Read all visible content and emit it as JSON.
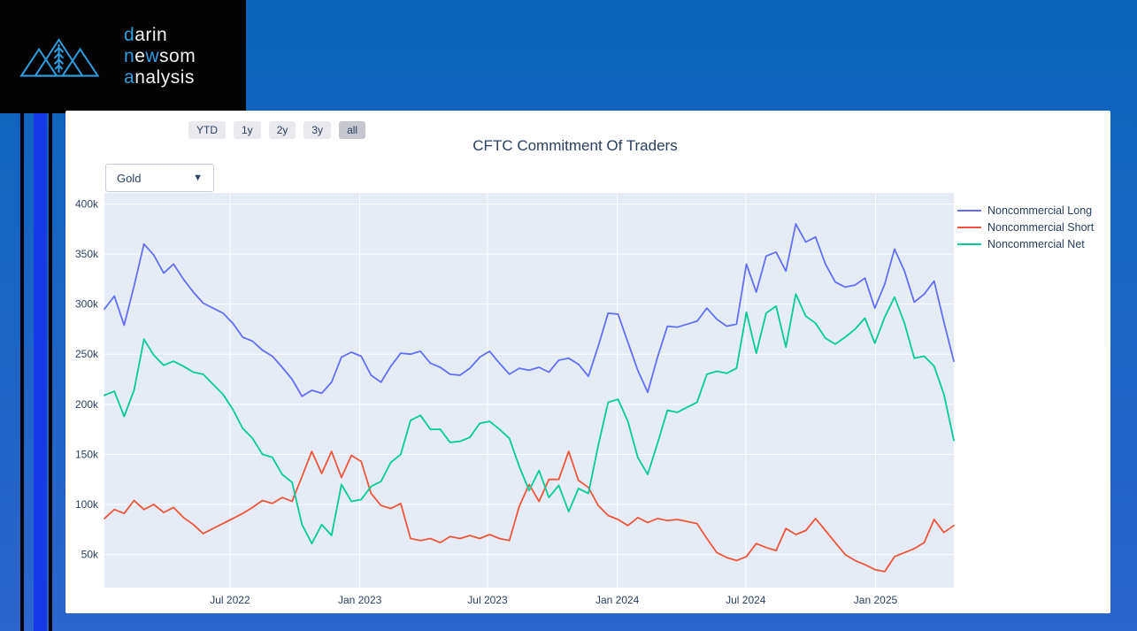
{
  "page": {
    "background_top": "#0b63bb",
    "background_bottom": "#2b65cd",
    "accent_stripe_color": "#1638e6"
  },
  "logo": {
    "accent_color": "#2f9dde",
    "lines": [
      {
        "parts": [
          {
            "t": "d",
            "accent": true
          },
          {
            "t": "arin",
            "accent": false
          }
        ]
      },
      {
        "parts": [
          {
            "t": "n",
            "accent": true
          },
          {
            "t": "e",
            "accent": false
          },
          {
            "t": "w",
            "accent": true
          },
          {
            "t": "som",
            "accent": false
          }
        ]
      },
      {
        "parts": [
          {
            "t": "a",
            "accent": true
          },
          {
            "t": "nalysis",
            "accent": false
          }
        ]
      }
    ]
  },
  "toolbar": {
    "range_buttons": [
      {
        "label": "YTD",
        "active": false
      },
      {
        "label": "1y",
        "active": false
      },
      {
        "label": "2y",
        "active": false
      },
      {
        "label": "3y",
        "active": false
      },
      {
        "label": "all",
        "active": true
      }
    ]
  },
  "dropdown": {
    "value": "Gold",
    "arrow_icon": "▼"
  },
  "chart_data": {
    "type": "line",
    "title": "CFTC Commitment Of Traders",
    "unit": "contracts, thousands",
    "plot_bg": "#e5ecf6",
    "grid_color": "#ffffff",
    "text_color": "#2a3f5f",
    "grid": true,
    "legend_position": "top-right-outside",
    "ylim": [
      17,
      411
    ],
    "x_range": [
      "2022-01-04",
      "2025-04-22"
    ],
    "yticks": [
      {
        "label": "400k",
        "value": 400
      },
      {
        "label": "350k",
        "value": 350
      },
      {
        "label": "300k",
        "value": 300
      },
      {
        "label": "250k",
        "value": 250
      },
      {
        "label": "200k",
        "value": 200
      },
      {
        "label": "150k",
        "value": 150
      },
      {
        "label": "100k",
        "value": 100
      },
      {
        "label": "50k",
        "value": 50
      }
    ],
    "xticks": [
      {
        "label": "Jul 2022",
        "date": "2022-07-01"
      },
      {
        "label": "Jan 2023",
        "date": "2023-01-01"
      },
      {
        "label": "Jul 2023",
        "date": "2023-07-01"
      },
      {
        "label": "Jan 2024",
        "date": "2024-01-01"
      },
      {
        "label": "Jul 2024",
        "date": "2024-07-01"
      },
      {
        "label": "Jan 2025",
        "date": "2025-01-01"
      }
    ],
    "x_dates": [
      "2022-01-04",
      "2022-01-18",
      "2022-02-01",
      "2022-02-15",
      "2022-03-01",
      "2022-03-15",
      "2022-03-29",
      "2022-04-12",
      "2022-04-26",
      "2022-05-10",
      "2022-05-24",
      "2022-06-07",
      "2022-06-21",
      "2022-07-05",
      "2022-07-19",
      "2022-08-02",
      "2022-08-16",
      "2022-08-30",
      "2022-09-13",
      "2022-09-27",
      "2022-10-11",
      "2022-10-25",
      "2022-11-08",
      "2022-11-22",
      "2022-12-06",
      "2022-12-20",
      "2023-01-03",
      "2023-01-17",
      "2023-01-31",
      "2023-02-14",
      "2023-02-28",
      "2023-03-14",
      "2023-03-28",
      "2023-04-11",
      "2023-04-25",
      "2023-05-09",
      "2023-05-23",
      "2023-06-06",
      "2023-06-20",
      "2023-07-04",
      "2023-07-18",
      "2023-08-01",
      "2023-08-15",
      "2023-08-29",
      "2023-09-12",
      "2023-09-26",
      "2023-10-10",
      "2023-10-24",
      "2023-11-07",
      "2023-11-21",
      "2023-12-05",
      "2023-12-19",
      "2024-01-02",
      "2024-01-16",
      "2024-01-30",
      "2024-02-13",
      "2024-02-27",
      "2024-03-12",
      "2024-03-26",
      "2024-04-09",
      "2024-04-23",
      "2024-05-07",
      "2024-05-21",
      "2024-06-04",
      "2024-06-18",
      "2024-07-02",
      "2024-07-16",
      "2024-07-30",
      "2024-08-13",
      "2024-08-27",
      "2024-09-10",
      "2024-09-24",
      "2024-10-08",
      "2024-10-22",
      "2024-11-05",
      "2024-11-19",
      "2024-12-03",
      "2024-12-17",
      "2024-12-31",
      "2025-01-14",
      "2025-01-28",
      "2025-02-11",
      "2025-02-25",
      "2025-03-11",
      "2025-03-25",
      "2025-04-08",
      "2025-04-22"
    ],
    "series": [
      {
        "name": "Noncommercial Long",
        "color": "#636efa",
        "values": [
          295,
          308,
          279,
          318,
          360,
          349,
          331,
          340,
          325,
          312,
          301,
          296,
          291,
          281,
          267,
          263,
          254,
          248,
          237,
          225,
          208,
          214,
          211,
          222,
          247,
          252,
          248,
          229,
          222,
          238,
          251,
          250,
          253,
          241,
          237,
          230,
          229,
          236,
          247,
          253,
          241,
          230,
          236,
          234,
          237,
          232,
          244,
          246,
          240,
          228,
          258,
          291,
          290,
          262,
          234,
          212,
          247,
          278,
          277,
          280,
          283,
          296,
          285,
          278,
          280,
          340,
          312,
          348,
          352,
          333,
          380,
          362,
          367,
          340,
          322,
          317,
          319,
          326,
          296,
          320,
          355,
          333,
          302,
          310,
          323,
          282,
          243
        ]
      },
      {
        "name": "Noncommercial Short",
        "color": "#ef553b",
        "values": [
          86,
          95,
          91,
          104,
          95,
          100,
          92,
          97,
          87,
          80,
          71,
          76,
          81,
          86,
          91,
          97,
          104,
          101,
          107,
          103,
          128,
          153,
          131,
          153,
          127,
          149,
          143,
          111,
          99,
          96,
          101,
          66,
          64,
          66,
          62,
          68,
          66,
          69,
          66,
          70,
          66,
          64,
          98,
          120,
          103,
          125,
          125,
          153,
          124,
          117,
          99,
          89,
          85,
          79,
          87,
          82,
          86,
          84,
          85,
          83,
          81,
          66,
          52,
          47,
          44,
          48,
          61,
          57,
          54,
          76,
          70,
          74,
          86,
          74,
          62,
          50,
          44,
          40,
          35,
          33,
          48,
          52,
          56,
          62,
          85,
          72,
          79
        ]
      },
      {
        "name": "Noncommercial Net",
        "color": "#00cc96",
        "values": [
          209,
          213,
          188,
          214,
          265,
          249,
          239,
          243,
          238,
          232,
          230,
          220,
          210,
          195,
          176,
          166,
          150,
          147,
          130,
          122,
          80,
          61,
          80,
          69,
          120,
          103,
          105,
          118,
          123,
          142,
          150,
          184,
          189,
          175,
          175,
          162,
          163,
          167,
          181,
          183,
          175,
          166,
          138,
          114,
          134,
          107,
          119,
          93,
          116,
          111,
          159,
          202,
          205,
          183,
          147,
          130,
          161,
          194,
          192,
          197,
          202,
          230,
          233,
          231,
          236,
          292,
          251,
          291,
          298,
          257,
          310,
          288,
          281,
          266,
          260,
          267,
          275,
          286,
          261,
          287,
          307,
          281,
          246,
          248,
          238,
          210,
          164
        ]
      }
    ]
  }
}
